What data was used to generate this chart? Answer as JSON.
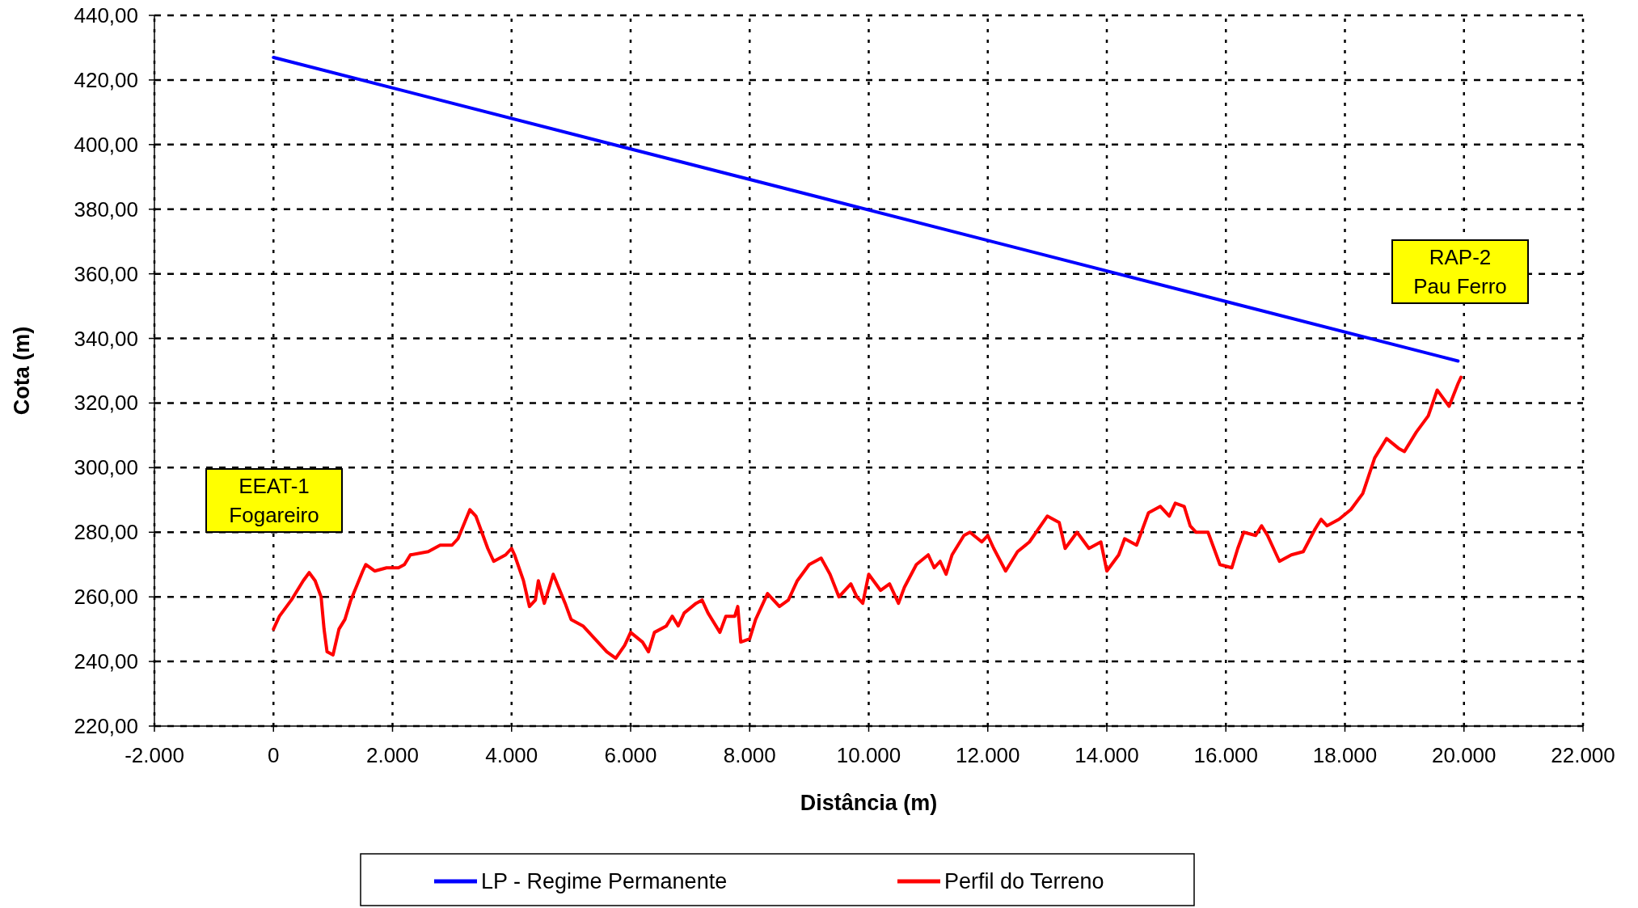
{
  "chart_data": {
    "type": "line",
    "xlabel": "Distância (m)",
    "ylabel": "Cota (m)",
    "xlim": [
      -2000,
      22000
    ],
    "ylim": [
      220,
      440
    ],
    "xticks": [
      {
        "value": -2000,
        "label": "-2.000"
      },
      {
        "value": 0,
        "label": "0"
      },
      {
        "value": 2000,
        "label": "2.000"
      },
      {
        "value": 4000,
        "label": "4.000"
      },
      {
        "value": 6000,
        "label": "6.000"
      },
      {
        "value": 8000,
        "label": "8.000"
      },
      {
        "value": 10000,
        "label": "10.000"
      },
      {
        "value": 12000,
        "label": "12.000"
      },
      {
        "value": 14000,
        "label": "14.000"
      },
      {
        "value": 16000,
        "label": "16.000"
      },
      {
        "value": 18000,
        "label": "18.000"
      },
      {
        "value": 20000,
        "label": "20.000"
      },
      {
        "value": 22000,
        "label": "22.000"
      }
    ],
    "yticks": [
      {
        "value": 220,
        "label": "220,00"
      },
      {
        "value": 240,
        "label": "240,00"
      },
      {
        "value": 260,
        "label": "260,00"
      },
      {
        "value": 280,
        "label": "280,00"
      },
      {
        "value": 300,
        "label": "300,00"
      },
      {
        "value": 320,
        "label": "320,00"
      },
      {
        "value": 340,
        "label": "340,00"
      },
      {
        "value": 360,
        "label": "360,00"
      },
      {
        "value": 380,
        "label": "380,00"
      },
      {
        "value": 400,
        "label": "400,00"
      },
      {
        "value": 420,
        "label": "420,00"
      },
      {
        "value": 440,
        "label": "440,00"
      }
    ],
    "grid": true,
    "legend": "bottom",
    "marker": "none",
    "line_style": "solid",
    "series": [
      {
        "name": "LP - Regime Permanente",
        "color": "#0000ff",
        "x": [
          0,
          19900
        ],
        "values": [
          427,
          333
        ]
      },
      {
        "name": "Perfil do Terreno",
        "color": "#ff0000",
        "x": [
          0,
          100,
          300,
          500,
          600,
          700,
          800,
          850,
          900,
          1000,
          1100,
          1200,
          1300,
          1500,
          1550,
          1700,
          1900,
          2000,
          2100,
          2200,
          2300,
          2600,
          2800,
          3000,
          3100,
          3300,
          3400,
          3600,
          3700,
          3900,
          4000,
          4050,
          4200,
          4300,
          4400,
          4450,
          4550,
          4700,
          4900,
          5000,
          5200,
          5400,
          5600,
          5750,
          5900,
          6000,
          6200,
          6300,
          6400,
          6600,
          6700,
          6800,
          6900,
          7100,
          7200,
          7300,
          7500,
          7600,
          7750,
          7800,
          7850,
          8000,
          8100,
          8300,
          8500,
          8650,
          8800,
          9000,
          9200,
          9350,
          9500,
          9700,
          9800,
          9900,
          10000,
          10200,
          10350,
          10500,
          10600,
          10800,
          11000,
          11100,
          11200,
          11300,
          11400,
          11600,
          11700,
          11900,
          12000,
          12100,
          12300,
          12500,
          12700,
          13000,
          13200,
          13300,
          13500,
          13700,
          13900,
          14000,
          14200,
          14300,
          14500,
          14700,
          14900,
          15050,
          15150,
          15300,
          15400,
          15500,
          15700,
          15900,
          16100,
          16200,
          16300,
          16500,
          16600,
          16700,
          16900,
          17100,
          17300,
          17500,
          17600,
          17700,
          17900,
          18100,
          18300,
          18500,
          18700,
          18900,
          19000,
          19200,
          19400,
          19550,
          19750,
          19900,
          19950
        ],
        "values": [
          250,
          254,
          259,
          265,
          267.5,
          265,
          260,
          250,
          243,
          242,
          250,
          253,
          259,
          268,
          270,
          268,
          269,
          269,
          269,
          270,
          273,
          274,
          276,
          276,
          278,
          287,
          285,
          275,
          271,
          273,
          275,
          273,
          265,
          257,
          259,
          265,
          258,
          267,
          258,
          253,
          251,
          247,
          243,
          241,
          245,
          249,
          246,
          243,
          249,
          251,
          254,
          251,
          255,
          258,
          259,
          255,
          249,
          254,
          254,
          257,
          246,
          247,
          253,
          261,
          257,
          259,
          265,
          270,
          272,
          267,
          260,
          264,
          260,
          258,
          267,
          262,
          264,
          258,
          263,
          270,
          273,
          269,
          271,
          267,
          273,
          279,
          280,
          277,
          279,
          275,
          268,
          274,
          277,
          285,
          283,
          275,
          280,
          275,
          277,
          268,
          273,
          278,
          276,
          286,
          288,
          285,
          289,
          288,
          282,
          280,
          280,
          270,
          269,
          275,
          280,
          279,
          282,
          279,
          271,
          273,
          274,
          281,
          284,
          282,
          284,
          287,
          292,
          303,
          309,
          306,
          305,
          311,
          316,
          324,
          319,
          326,
          328
        ]
      }
    ],
    "annotations": [
      "EEAT-1\nFogareiro",
      "RAP-2\nPau Ferro"
    ]
  }
}
